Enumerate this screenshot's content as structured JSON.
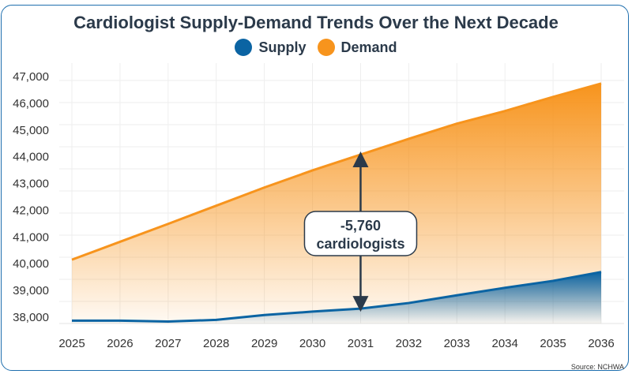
{
  "chart_data": {
    "type": "area",
    "title": "Cardiologist Supply-Demand Trends Over the Next Decade",
    "x": [
      2025,
      2026,
      2027,
      2028,
      2029,
      2030,
      2031,
      2032,
      2033,
      2034,
      2035,
      2036
    ],
    "series": [
      {
        "name": "Supply",
        "color": "#0b64a3",
        "values": [
          37840,
          37840,
          37810,
          37870,
          38050,
          38180,
          38290,
          38500,
          38790,
          39070,
          39330,
          39660
        ]
      },
      {
        "name": "Demand",
        "color": "#f7941d",
        "values": [
          40120,
          40790,
          41460,
          42140,
          42820,
          43460,
          44050,
          44640,
          45210,
          45680,
          46210,
          46710
        ]
      }
    ],
    "yticks": [
      "38,000",
      "39,000",
      "40,000",
      "41,000",
      "42,000",
      "43,000",
      "44,000",
      "45,000",
      "46,000",
      "47,000"
    ],
    "ylim": [
      37700,
      47000
    ],
    "grid": true,
    "legend": "top-center",
    "annotation": {
      "year": 2031,
      "line1": "-5,760",
      "line2": "cardiologists"
    }
  },
  "source": "Source: NCHWA"
}
